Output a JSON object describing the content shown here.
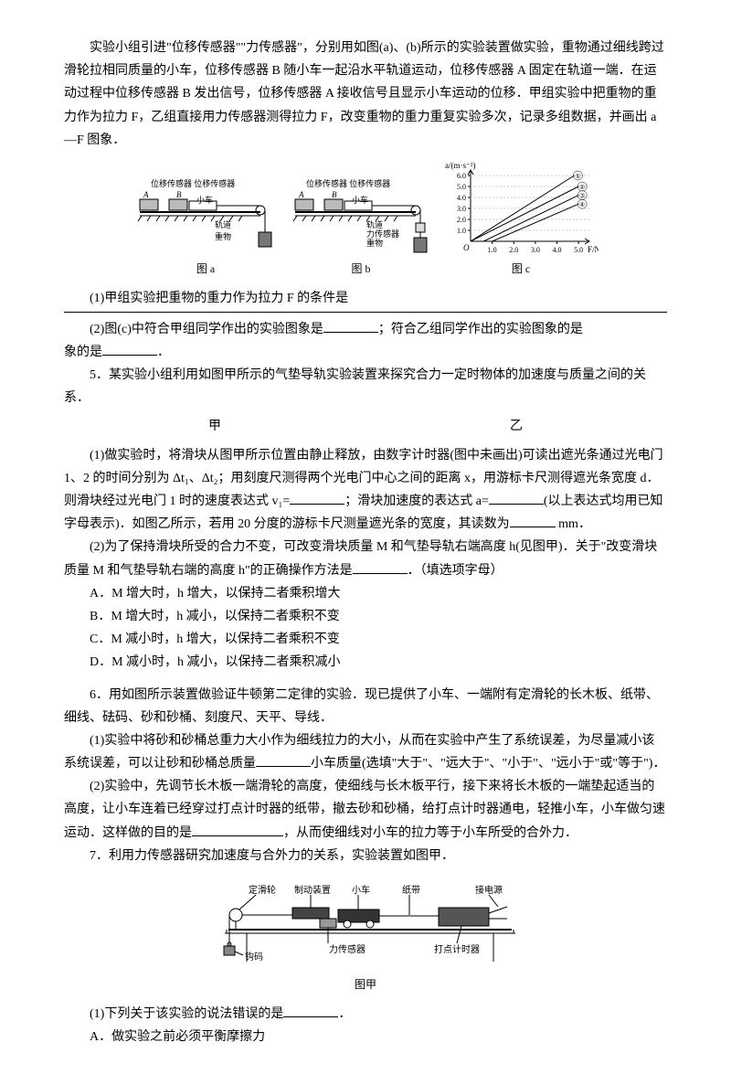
{
  "intro": {
    "p1": "实验小组引进\"位移传感器\"\"力传感器\"，分别用如图(a)、(b)所示的实验装置做实验，重物通过细线跨过滑轮拉相同质量的小车，位移传感器 B 随小车一起沿水平轨道运动，位移传感器 A 固定在轨道一端．在运动过程中位移传感器 B 发出信号，位移传感器 A 接收信号且显示小车运动的位移．甲组实验中把重物的重力作为拉力 F，乙组直接用力传感器测得拉力 F，改变重物的重力重复实验多次，记录多组数据，并画出 a—F 图象．"
  },
  "figA": {
    "labels": {
      "sensorA": "位移传感器",
      "sensorB": "位移传感器",
      "car": "小车",
      "track": "轨道",
      "weight": "重物",
      "cap": "图 a"
    },
    "colors": {
      "line": "#000",
      "fill": "#888"
    }
  },
  "figB": {
    "labels": {
      "sensorA": "位移传感器",
      "sensorB": "位移传感器",
      "car": "小车",
      "track": "轨道",
      "force": "力传感器",
      "weight": "重物",
      "cap": "图 b"
    }
  },
  "figC": {
    "cap": "图 c",
    "xlabel": "F/N",
    "ylabel": "a/(m·s⁻²)",
    "xlim": [
      0,
      5.5
    ],
    "ylim": [
      0,
      6.5
    ],
    "xticks": [
      1.0,
      2.0,
      3.0,
      4.0,
      5.0
    ],
    "yticks": [
      1.0,
      2.0,
      3.0,
      4.0,
      5.0,
      6.0
    ],
    "lines": [
      {
        "id": "①",
        "x0": 0,
        "y0": 0,
        "x1": 4.8,
        "y1": 6.0
      },
      {
        "id": "②",
        "x0": 0,
        "y0": 0,
        "x1": 5.0,
        "y1": 5.0
      },
      {
        "id": "③",
        "x0": 0.6,
        "y0": 0,
        "x1": 5.0,
        "y1": 4.2
      },
      {
        "id": "④",
        "x0": 1.0,
        "y0": 0,
        "x1": 5.0,
        "y1": 3.4
      }
    ],
    "colors": {
      "axis": "#000",
      "line": "#000",
      "bg": "#fff"
    }
  },
  "q1": "(1)甲组实验把重物的重力作为拉力 F 的条件是",
  "q2a": "(2)图(c)中符合甲组同学作出的实验图象是",
  "q2b": "；符合乙组同学作出的实验图象的是",
  "q2c": "．",
  "q5": {
    "lead": "5．某实验小组利用如图甲所示的气垫导轨实验装置来探究合力一定时物体的加速度与质量之间的关系．",
    "jia": "甲",
    "yi": "乙",
    "p1a": "(1)做实验时，将滑块从图甲所示位置由静止释放，由数字计时器(图中未画出)可读出遮光条通过光电门 1、2 的时间分别为 Δt₁、Δt₂；用刻度尺测得两个光电门中心之间的距离 x，用游标卡尺测得遮光条宽度 d．则滑块经过光电门 1 时的速度表达式 v₁=",
    "p1b": "；滑块加速度的表达式 a=",
    "p1c": "(以上表达式均用已知字母表示)．如图乙所示，若用 20 分度的游标卡尺测量遮光条的宽度，其读数为",
    "p1d": " mm．",
    "p2a": "(2)为了保持滑块所受的合力不变，可改变滑块质量 M 和气垫导轨右端高度 h(见图甲)．关于\"改变滑块质量 M 和气垫导轨右端的高度 h\"的正确操作方法是",
    "p2b": "．（填选项字母）",
    "optA": "A．M 增大时，h 增大，以保持二者乘积增大",
    "optB": "B．M 增大时，h 减小，以保持二者乘积不变",
    "optC": "C．M 减小时，h 增大，以保持二者乘积不变",
    "optD": "D．M 减小时，h 减小，以保持二者乘积减小"
  },
  "q6": {
    "lead": "6．用如图所示装置做验证牛顿第二定律的实验．现已提供了小车、一端附有定滑轮的长木板、纸带、细线、砝码、砂和砂桶、刻度尺、天平、导线．",
    "p1a": "(1)实验中将砂和砂桶总重力大小作为细线拉力的大小，从而在实验中产生了系统误差，为尽量减小该系统误差，可以让砂和砂桶总质量",
    "p1b": "小车质量(选填\"大于\"、\"远大于\"、\"小于\"、\"远小于\"或\"等于\")．",
    "p2a": "(2)实验中，先调节长木板一端滑轮的高度，使细线与长木板平行，接下来将长木板的一端垫起适当的高度，让小车连着已经穿过打点计时器的纸带，撤去砂和砂桶，给打点计时器通电，轻推小车，小车做匀速运动．这样做的目的是",
    "p2b": "，从而使细线对小车的拉力等于小车所受的合外力．"
  },
  "q7": {
    "lead": "7．利用力传感器研究加速度与合外力的关系，实验装置如图甲．",
    "fig": {
      "labels": {
        "pulley": "定滑轮",
        "brake": "制动装置",
        "car": "小车",
        "tape": "纸带",
        "power": "接电源",
        "hook": "钩码",
        "sensor": "力传感器",
        "timer": "打点计时器",
        "cap": "图甲"
      }
    },
    "p1": "(1)下列关于该实验的说法错误的是",
    "p1end": "．",
    "optA": "A．做实验之前必须平衡摩擦力"
  }
}
